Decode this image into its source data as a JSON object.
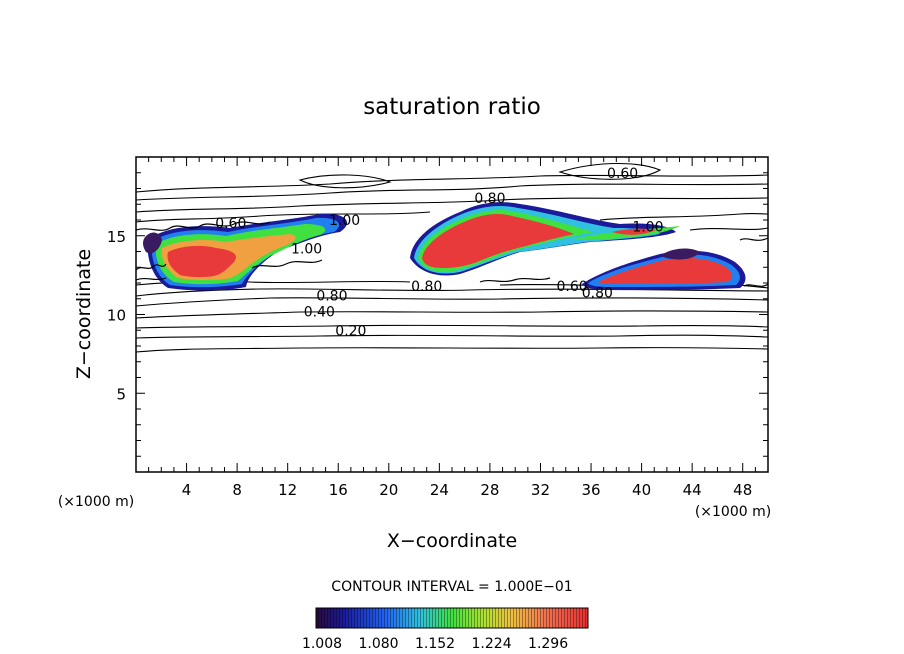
{
  "chart_data": {
    "type": "contour",
    "title": "saturation ratio",
    "xlabel": "X−coordinate",
    "ylabel": "Z−coordinate",
    "x_unit_left": "(×1000 m)",
    "x_unit_right": "(×1000 m)",
    "xlim": [
      0,
      50
    ],
    "ylim": [
      0,
      20
    ],
    "x_ticks": [
      4,
      8,
      12,
      16,
      20,
      24,
      28,
      32,
      36,
      40,
      44,
      48
    ],
    "y_ticks": [
      5,
      10,
      15
    ],
    "x_tick_labels": [
      "4",
      "8",
      "12",
      "16",
      "20",
      "24",
      "28",
      "32",
      "36",
      "40",
      "44",
      "48"
    ],
    "y_tick_labels": [
      "5",
      "10",
      "15"
    ],
    "contour_interval_text": "CONTOUR INTERVAL = 1.000E−01",
    "contour_labels": [
      {
        "text": "0.60",
        "x": 38.5,
        "y": 19.0
      },
      {
        "text": "0.80",
        "x": 28.0,
        "y": 17.4
      },
      {
        "text": "0.60",
        "x": 7.5,
        "y": 15.8
      },
      {
        "text": "1.00",
        "x": 16.5,
        "y": 16.0
      },
      {
        "text": "1.00",
        "x": 40.5,
        "y": 15.6
      },
      {
        "text": "1.00",
        "x": 13.5,
        "y": 14.2
      },
      {
        "text": "0.80",
        "x": 15.5,
        "y": 11.2
      },
      {
        "text": "0.80",
        "x": 23.0,
        "y": 11.8
      },
      {
        "text": "0.60",
        "x": 34.5,
        "y": 11.8
      },
      {
        "text": "0.80",
        "x": 36.5,
        "y": 11.4
      },
      {
        "text": "0.40",
        "x": 14.5,
        "y": 10.2
      },
      {
        "text": "0.20",
        "x": 17.0,
        "y": 9.0
      }
    ],
    "colorbar": {
      "tick_labels": [
        "1.008",
        "1.080",
        "1.152",
        "1.224",
        "1.296"
      ],
      "colors": [
        "#3a1a60",
        "#1a1a9a",
        "#2040e0",
        "#20a0ff",
        "#30d0c0",
        "#40e040",
        "#b0e030",
        "#f0c040",
        "#f07050",
        "#e83030"
      ]
    }
  }
}
